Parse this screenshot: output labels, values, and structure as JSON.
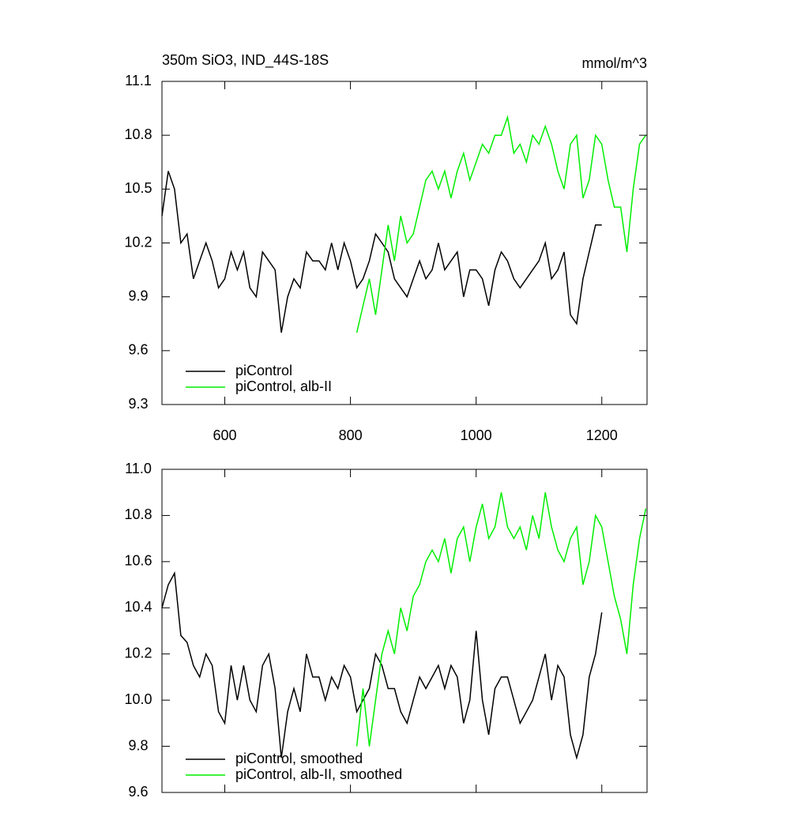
{
  "chart_data": [
    {
      "type": "line",
      "title": "350m SiO3, IND_44S-18S",
      "units": "mmol/m^3",
      "xlim": [
        500,
        1272
      ],
      "xticks": [
        600,
        800,
        1000,
        1200
      ],
      "show_xtick_labels": true,
      "ylim": [
        9.3,
        11.1
      ],
      "yticks": [
        9.3,
        9.6,
        9.9,
        10.2,
        10.5,
        10.8,
        11.1
      ],
      "legend": "lower left",
      "series": [
        {
          "name": "piControl",
          "color": "#000000",
          "x": [
            500,
            510,
            520,
            530,
            540,
            550,
            560,
            570,
            580,
            590,
            600,
            610,
            620,
            630,
            640,
            650,
            660,
            670,
            680,
            690,
            700,
            710,
            720,
            730,
            740,
            750,
            760,
            770,
            780,
            790,
            800,
            810,
            820,
            830,
            840,
            850,
            860,
            870,
            880,
            890,
            900,
            910,
            920,
            930,
            940,
            950,
            960,
            970,
            980,
            990,
            1000,
            1010,
            1020,
            1030,
            1040,
            1050,
            1060,
            1070,
            1080,
            1090,
            1100,
            1110,
            1120,
            1130,
            1140,
            1150,
            1160,
            1170,
            1180,
            1190,
            1200
          ],
          "values": [
            10.35,
            10.6,
            10.5,
            10.2,
            10.25,
            10.0,
            10.1,
            10.2,
            10.1,
            9.95,
            10.0,
            10.15,
            10.05,
            10.15,
            9.95,
            9.9,
            10.15,
            10.1,
            10.05,
            9.7,
            9.9,
            10.0,
            9.95,
            10.15,
            10.1,
            10.1,
            10.05,
            10.2,
            10.05,
            10.2,
            10.1,
            9.95,
            10.0,
            10.1,
            10.25,
            10.2,
            10.15,
            10.0,
            9.95,
            9.9,
            10.0,
            10.1,
            10.0,
            10.05,
            10.2,
            10.05,
            10.1,
            10.15,
            9.9,
            10.05,
            10.05,
            10.0,
            9.85,
            10.05,
            10.15,
            10.1,
            10.0,
            9.95,
            10.0,
            10.05,
            10.1,
            10.2,
            10.0,
            10.05,
            10.15,
            9.8,
            9.75,
            10.0,
            10.15,
            10.3,
            10.3
          ]
        },
        {
          "name": "piControl, alb-II",
          "color": "#00ee00",
          "x": [
            810,
            820,
            830,
            840,
            850,
            860,
            870,
            880,
            890,
            900,
            910,
            920,
            930,
            940,
            950,
            960,
            970,
            980,
            990,
            1000,
            1010,
            1020,
            1030,
            1040,
            1050,
            1060,
            1070,
            1080,
            1090,
            1100,
            1110,
            1120,
            1130,
            1140,
            1150,
            1160,
            1170,
            1180,
            1190,
            1200,
            1210,
            1220,
            1230,
            1240,
            1250,
            1260,
            1270
          ],
          "values": [
            9.7,
            9.85,
            10.0,
            9.8,
            10.05,
            10.3,
            10.1,
            10.35,
            10.2,
            10.25,
            10.4,
            10.55,
            10.6,
            10.5,
            10.6,
            10.45,
            10.6,
            10.7,
            10.55,
            10.65,
            10.75,
            10.7,
            10.8,
            10.8,
            10.9,
            10.7,
            10.75,
            10.65,
            10.8,
            10.75,
            10.85,
            10.75,
            10.6,
            10.5,
            10.75,
            10.8,
            10.45,
            10.55,
            10.8,
            10.75,
            10.55,
            10.4,
            10.4,
            10.15,
            10.5,
            10.75,
            10.8
          ]
        }
      ]
    },
    {
      "type": "line",
      "xlim": [
        500,
        1272
      ],
      "xticks": [
        600,
        800,
        1000,
        1200
      ],
      "show_xtick_labels": false,
      "ylim": [
        9.6,
        11.0
      ],
      "yticks": [
        9.6,
        9.8,
        {
          "value": 10.0,
          "label": "10.0"
        },
        10.2,
        10.4,
        10.6,
        10.8,
        {
          "value": 11.0,
          "label": "11.0"
        }
      ],
      "legend": "lower left",
      "series": [
        {
          "name": "piControl, smoothed",
          "color": "#000000",
          "x": [
            500,
            510,
            520,
            530,
            540,
            550,
            560,
            570,
            580,
            590,
            600,
            610,
            620,
            630,
            640,
            650,
            660,
            670,
            680,
            690,
            700,
            710,
            720,
            730,
            740,
            750,
            760,
            770,
            780,
            790,
            800,
            810,
            820,
            830,
            840,
            850,
            860,
            870,
            880,
            890,
            900,
            910,
            920,
            930,
            940,
            950,
            960,
            970,
            980,
            990,
            1000,
            1010,
            1020,
            1030,
            1040,
            1050,
            1060,
            1070,
            1080,
            1090,
            1100,
            1110,
            1120,
            1130,
            1140,
            1150,
            1160,
            1170,
            1180,
            1190,
            1200
          ],
          "values": [
            10.4,
            10.5,
            10.55,
            10.28,
            10.25,
            10.15,
            10.1,
            10.2,
            10.15,
            9.95,
            9.9,
            10.15,
            10.0,
            10.15,
            10.0,
            9.95,
            10.15,
            10.2,
            10.05,
            9.75,
            9.95,
            10.05,
            9.95,
            10.2,
            10.1,
            10.1,
            10.0,
            10.1,
            10.05,
            10.15,
            10.1,
            9.95,
            10.0,
            10.05,
            10.2,
            10.15,
            10.05,
            10.05,
            9.95,
            9.9,
            10.0,
            10.1,
            10.05,
            10.1,
            10.15,
            10.05,
            10.15,
            10.1,
            9.9,
            10.0,
            10.3,
            10.0,
            9.85,
            10.05,
            10.1,
            10.1,
            10.0,
            9.9,
            9.95,
            10.0,
            10.1,
            10.2,
            10.0,
            10.15,
            10.1,
            9.85,
            9.75,
            9.85,
            10.1,
            10.2,
            10.38
          ]
        },
        {
          "name": "piControl, alb-II, smoothed",
          "color": "#00ee00",
          "x": [
            810,
            820,
            830,
            840,
            850,
            860,
            870,
            880,
            890,
            900,
            910,
            920,
            930,
            940,
            950,
            960,
            970,
            980,
            990,
            1000,
            1010,
            1020,
            1030,
            1040,
            1050,
            1060,
            1070,
            1080,
            1090,
            1100,
            1110,
            1120,
            1130,
            1140,
            1150,
            1160,
            1170,
            1180,
            1190,
            1200,
            1210,
            1220,
            1230,
            1240,
            1250,
            1260,
            1270
          ],
          "values": [
            9.8,
            10.05,
            9.8,
            10.0,
            10.2,
            10.3,
            10.2,
            10.4,
            10.3,
            10.45,
            10.5,
            10.6,
            10.65,
            10.6,
            10.7,
            10.55,
            10.7,
            10.75,
            10.6,
            10.75,
            10.85,
            10.7,
            10.75,
            10.9,
            10.75,
            10.7,
            10.75,
            10.65,
            10.8,
            10.7,
            10.9,
            10.75,
            10.65,
            10.6,
            10.7,
            10.75,
            10.5,
            10.6,
            10.8,
            10.75,
            10.6,
            10.45,
            10.35,
            10.2,
            10.5,
            10.7,
            10.83
          ]
        }
      ]
    }
  ]
}
